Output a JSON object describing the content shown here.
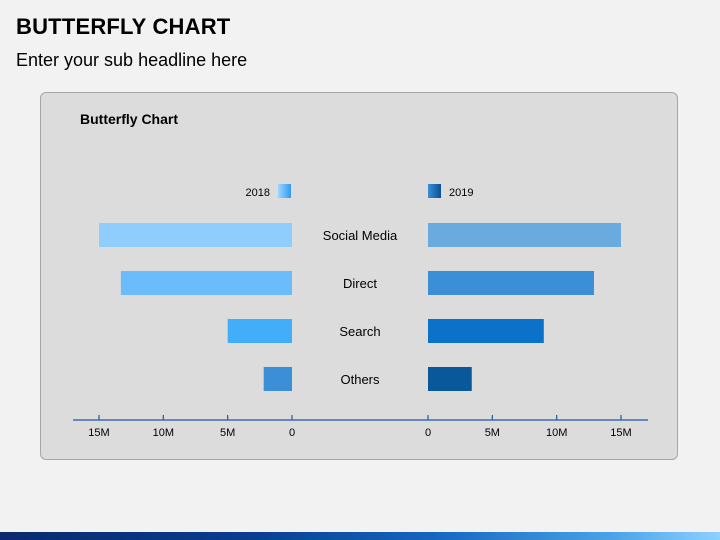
{
  "header": {
    "title": "BUTTERFLY CHART",
    "subtitle": "Enter your sub headline here"
  },
  "chart_data": {
    "type": "bar",
    "orientation": "horizontal-butterfly",
    "title": "Butterfly Chart",
    "categories": [
      "Social Media",
      "Direct",
      "Search",
      "Others"
    ],
    "series": [
      {
        "name": "2018",
        "side": "left",
        "values": [
          15,
          13.3,
          5,
          2.2
        ],
        "colors": [
          "#8ecdfc",
          "#6bbcfb",
          "#42aefa",
          "#3a8fd6"
        ]
      },
      {
        "name": "2019",
        "side": "right",
        "values": [
          15,
          12.9,
          9,
          3.4
        ],
        "colors": [
          "#6aaade",
          "#3a8fd6",
          "#0a72c8",
          "#08589a"
        ]
      }
    ],
    "xlim": [
      0,
      17
    ],
    "left_ticks": [
      "15M",
      "10M",
      "5M",
      "0"
    ],
    "left_tick_values": [
      15,
      10,
      5,
      0
    ],
    "right_ticks": [
      "0",
      "5M",
      "10M",
      "15M"
    ],
    "right_tick_values": [
      0,
      5,
      10,
      15
    ],
    "unit": "M",
    "legend_position": "top",
    "legend_colors": {
      "2018": "#5bb6f8",
      "2019": "#1a6fc0"
    },
    "grid": false
  }
}
